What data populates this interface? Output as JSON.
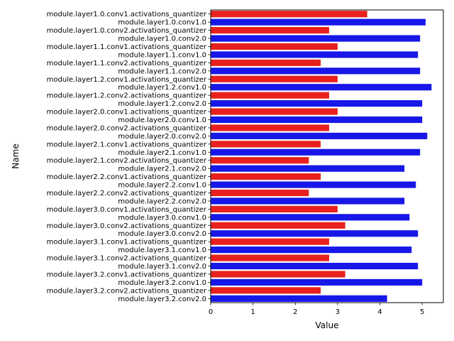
{
  "chart_data": {
    "type": "bar",
    "orientation": "horizontal",
    "title": "",
    "xlabel": "Value",
    "ylabel": "Name",
    "xlim": [
      0,
      5.5
    ],
    "xticks": [
      "0",
      "1",
      "2",
      "3",
      "4",
      "5"
    ],
    "grid": false,
    "legend": "none",
    "series_colors": {
      "activations_quantizer": "#e8201e",
      "conv": "#1717e8"
    },
    "categories": [
      "module.layer1.0.conv1.activations_quantizer",
      "module.layer1.0.conv1.0",
      "module.layer1.0.conv2.activations_quantizer",
      "module.layer1.0.conv2.0",
      "module.layer1.1.conv1.activations_quantizer",
      "module.layer1.1.conv1.0",
      "module.layer1.1.conv2.activations_quantizer",
      "module.layer1.1.conv2.0",
      "module.layer1.2.conv1.activations_quantizer",
      "module.layer1.2.conv1.0",
      "module.layer1.2.conv2.activations_quantizer",
      "module.layer1.2.conv2.0",
      "module.layer2.0.conv1.activations_quantizer",
      "module.layer2.0.conv1.0",
      "module.layer2.0.conv2.activations_quantizer",
      "module.layer2.0.conv2.0",
      "module.layer2.1.conv1.activations_quantizer",
      "module.layer2.1.conv1.0",
      "module.layer2.1.conv2.activations_quantizer",
      "module.layer2.1.conv2.0",
      "module.layer2.2.conv1.activations_quantizer",
      "module.layer2.2.conv1.0",
      "module.layer2.2.conv2.activations_quantizer",
      "module.layer2.2.conv2.0",
      "module.layer3.0.conv1.activations_quantizer",
      "module.layer3.0.conv1.0",
      "module.layer3.0.conv2.activations_quantizer",
      "module.layer3.0.conv2.0",
      "module.layer3.1.conv1.activations_quantizer",
      "module.layer3.1.conv1.0",
      "module.layer3.1.conv2.activations_quantizer",
      "module.layer3.1.conv2.0",
      "module.layer3.2.conv1.activations_quantizer",
      "module.layer3.2.conv1.0",
      "module.layer3.2.conv2.activations_quantizer",
      "module.layer3.2.conv2.0"
    ],
    "values": [
      3.7,
      5.08,
      2.8,
      4.95,
      3.0,
      4.9,
      2.6,
      4.95,
      3.0,
      5.22,
      2.8,
      5.0,
      3.0,
      5.0,
      2.8,
      5.12,
      2.6,
      4.95,
      2.32,
      4.58,
      2.6,
      4.85,
      2.32,
      4.58,
      3.0,
      4.7,
      3.18,
      4.9,
      2.8,
      4.75,
      2.8,
      4.9,
      3.18,
      5.0,
      2.6,
      4.17
    ]
  }
}
